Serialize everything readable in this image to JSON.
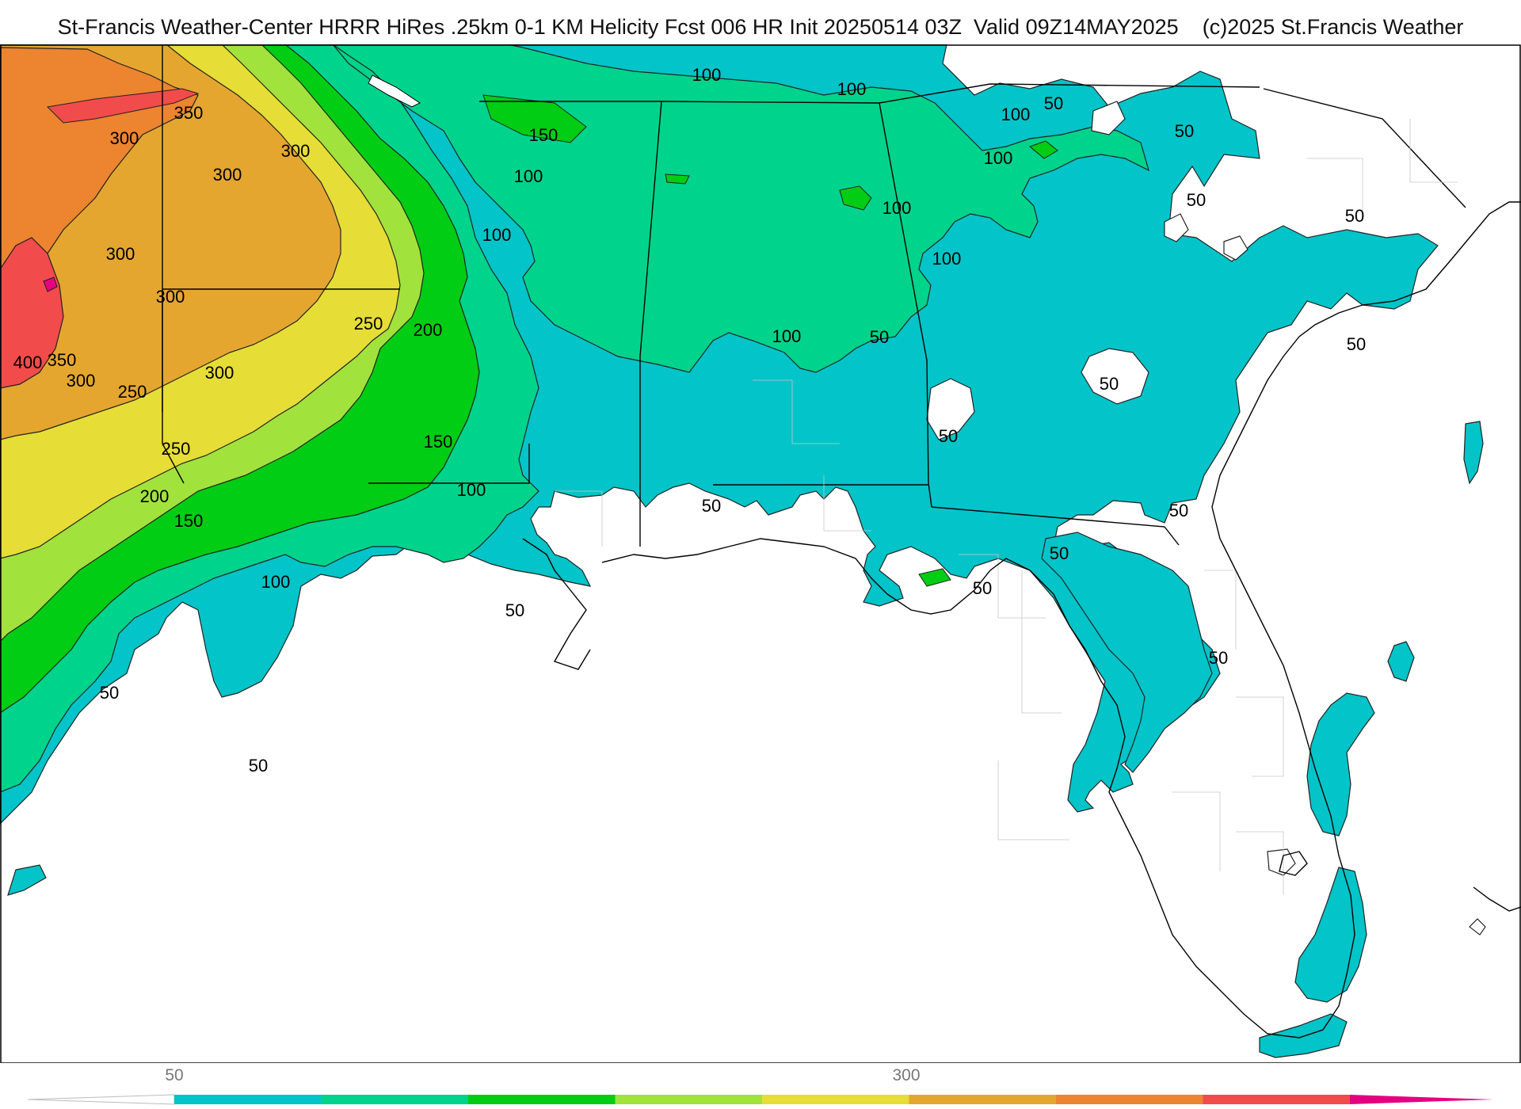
{
  "title": "St-Francis Weather-Center HRRR HiRes .25km 0-1 KM Helicity Fcst 006 HR Init 20250514 03Z  Valid 09Z14MAY2025    (c)2025 St.Francis Weather",
  "map": {
    "field": "0-1 KM Helicity",
    "colors": {
      "c50": "#03c4c8",
      "c100": "#00d38c",
      "c150": "#00cd13",
      "c200": "#a2e23c",
      "c250": "#e6dd36",
      "c300": "#e5a630",
      "c350": "#ec8430",
      "c400": "#f24b4b",
      "c450": "#e5007f",
      "land": "#ffffff",
      "water": "#ffffff"
    },
    "contour_labels": [
      "400",
      "350",
      "350",
      "300",
      "300",
      "300",
      "300",
      "300",
      "300",
      "300",
      "250",
      "250",
      "250",
      "200",
      "200",
      "150",
      "150",
      "150",
      "100",
      "100",
      "100",
      "100",
      "100",
      "100",
      "100",
      "100",
      "100",
      "100",
      "100",
      "50",
      "50",
      "50",
      "50",
      "50",
      "50",
      "50",
      "50",
      "50",
      "50",
      "50",
      "50",
      "50",
      "50",
      "50",
      "50"
    ]
  },
  "legend": {
    "labels": [
      "50",
      "300"
    ],
    "colors": [
      "#03c4c8",
      "#00d38c",
      "#00cd13",
      "#a2e23c",
      "#e6dd36",
      "#e5a630",
      "#ec8430",
      "#f24b4b",
      "#e5007f"
    ]
  }
}
